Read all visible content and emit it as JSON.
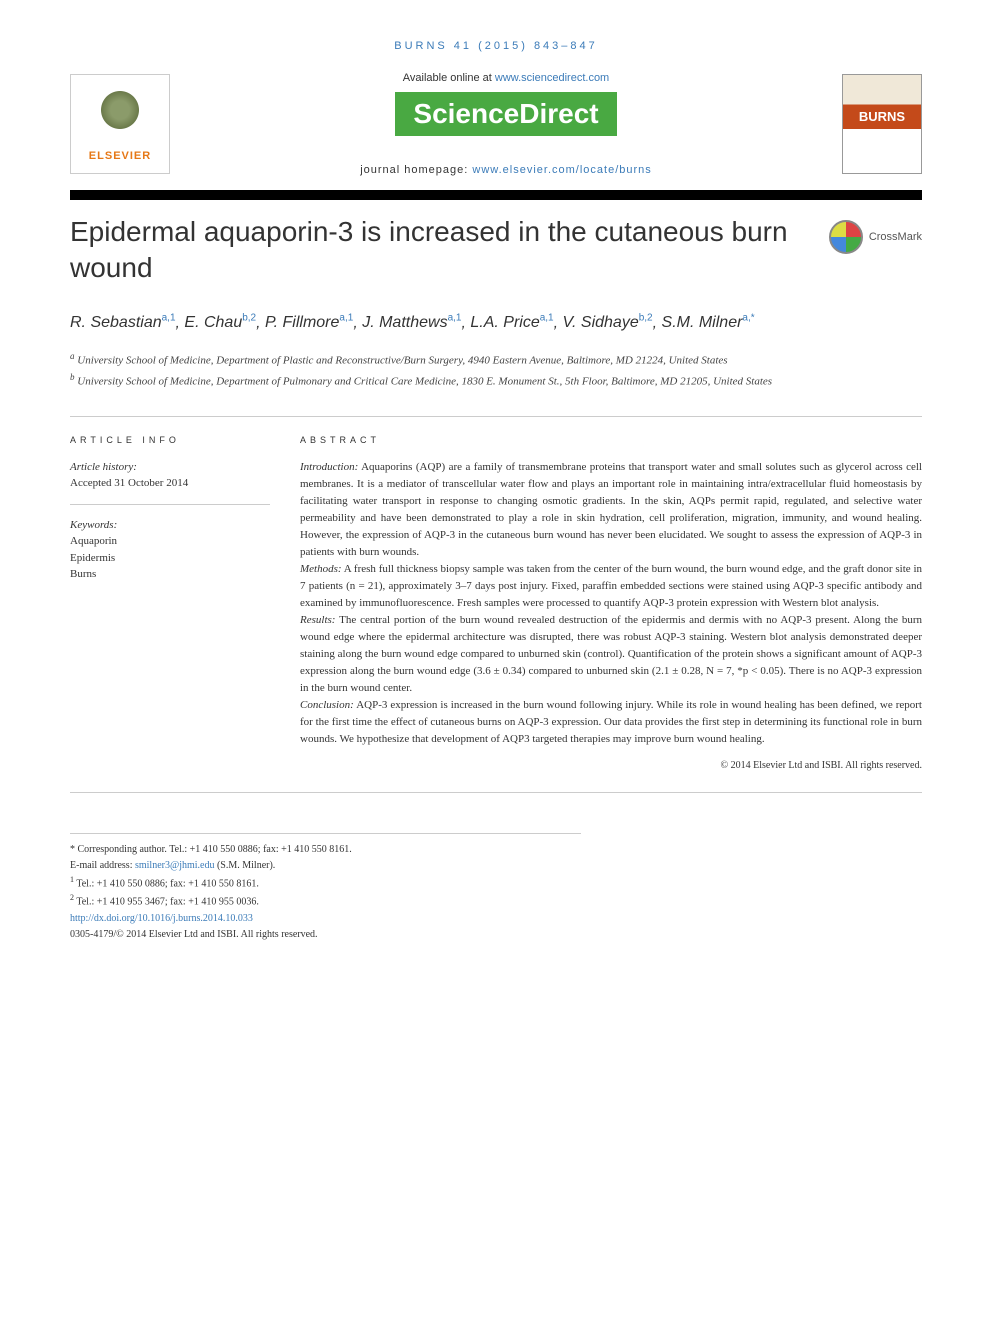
{
  "citation": "BURNS 41 (2015) 843–847",
  "availability": {
    "text": "Available online at ",
    "link": "www.sciencedirect.com",
    "logo": "ScienceDirect"
  },
  "journal_homepage": {
    "label": "journal homepage: ",
    "url": "www.elsevier.com/locate/burns"
  },
  "publisher_logo": "ELSEVIER",
  "journal_cover": "BURNS",
  "crossmark": "CrossMark",
  "title": "Epidermal aquaporin-3 is increased in the cutaneous burn wound",
  "authors": [
    {
      "name": "R. Sebastian",
      "affil": "a,1"
    },
    {
      "name": "E. Chau",
      "affil": "b,2"
    },
    {
      "name": "P. Fillmore",
      "affil": "a,1"
    },
    {
      "name": "J. Matthews",
      "affil": "a,1"
    },
    {
      "name": "L.A. Price",
      "affil": "a,1"
    },
    {
      "name": "V. Sidhaye",
      "affil": "b,2"
    },
    {
      "name": "S.M. Milner",
      "affil": "a,*"
    }
  ],
  "affiliations": {
    "a": "University School of Medicine, Department of Plastic and Reconstructive/Burn Surgery, 4940 Eastern Avenue, Baltimore, MD 21224, United States",
    "b": "University School of Medicine, Department of Pulmonary and Critical Care Medicine, 1830 E. Monument St., 5th Floor, Baltimore, MD 21205, United States"
  },
  "article_info": {
    "heading": "ARTICLE INFO",
    "history_label": "Article history:",
    "accepted": "Accepted 31 October 2014",
    "keywords_label": "Keywords:",
    "keywords": [
      "Aquaporin",
      "Epidermis",
      "Burns"
    ]
  },
  "abstract": {
    "heading": "ABSTRACT",
    "introduction_label": "Introduction:",
    "introduction": "Aquaporins (AQP) are a family of transmembrane proteins that transport water and small solutes such as glycerol across cell membranes. It is a mediator of transcellular water flow and plays an important role in maintaining intra/extracellular fluid homeostasis by facilitating water transport in response to changing osmotic gradients. In the skin, AQPs permit rapid, regulated, and selective water permeability and have been demonstrated to play a role in skin hydration, cell proliferation, migration, immunity, and wound healing. However, the expression of AQP-3 in the cutaneous burn wound has never been elucidated. We sought to assess the expression of AQP-3 in patients with burn wounds.",
    "methods_label": "Methods:",
    "methods": "A fresh full thickness biopsy sample was taken from the center of the burn wound, the burn wound edge, and the graft donor site in 7 patients (n = 21), approximately 3–7 days post injury. Fixed, paraffin embedded sections were stained using AQP-3 specific antibody and examined by immunofluorescence. Fresh samples were processed to quantify AQP-3 protein expression with Western blot analysis.",
    "results_label": "Results:",
    "results": "The central portion of the burn wound revealed destruction of the epidermis and dermis with no AQP-3 present. Along the burn wound edge where the epidermal architecture was disrupted, there was robust AQP-3 staining. Western blot analysis demonstrated deeper staining along the burn wound edge compared to unburned skin (control). Quantification of the protein shows a significant amount of AQP-3 expression along the burn wound edge (3.6 ± 0.34) compared to unburned skin (2.1 ± 0.28, N = 7, *p < 0.05). There is no AQP-3 expression in the burn wound center.",
    "conclusion_label": "Conclusion:",
    "conclusion": "AQP-3 expression is increased in the burn wound following injury. While its role in wound healing has been defined, we report for the first time the effect of cutaneous burns on AQP-3 expression. Our data provides the first step in determining its functional role in burn wounds. We hypothesize that development of AQP3 targeted therapies may improve burn wound healing.",
    "copyright": "© 2014 Elsevier Ltd and ISBI. All rights reserved."
  },
  "footnotes": {
    "corresponding": "* Corresponding author. Tel.: +1 410 550 0886; fax: +1 410 550 8161.",
    "email_label": "E-mail address: ",
    "email": "smilner3@jhmi.edu",
    "email_person": " (S.M. Milner).",
    "note1": "Tel.: +1 410 550 0886; fax: +1 410 550 8161.",
    "note2": "Tel.: +1 410 955 3467; fax: +1 410 955 0036.",
    "doi": "http://dx.doi.org/10.1016/j.burns.2014.10.033",
    "issn_copyright": "0305-4179/© 2014 Elsevier Ltd and ISBI. All rights reserved."
  },
  "colors": {
    "link": "#3b7bb8",
    "sciencedirect_bg": "#49a942",
    "elsevier_orange": "#e67817",
    "burns_red": "#c44a1a",
    "text": "#333333",
    "border": "#cccccc"
  },
  "typography": {
    "title_fontsize": 28,
    "authors_fontsize": 16,
    "body_fontsize": 11,
    "footnote_fontsize": 10,
    "heading_letterspacing": 4
  }
}
